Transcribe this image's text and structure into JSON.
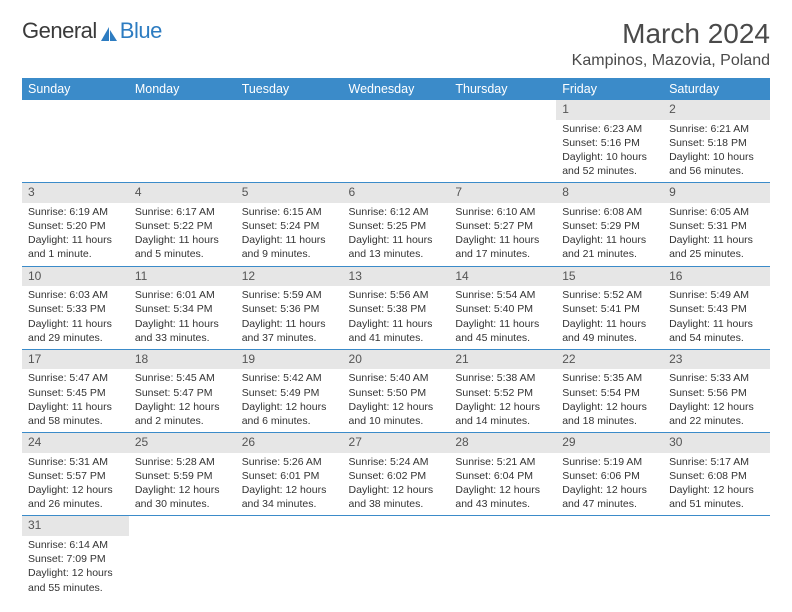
{
  "brand": {
    "word1": "General",
    "word2": "Blue"
  },
  "title": "March 2024",
  "location": "Kampinos, Mazovia, Poland",
  "colors": {
    "header_bg": "#3b8bc9",
    "header_text": "#ffffff",
    "daynum_bg": "#e6e6e6",
    "body_text": "#333333",
    "rule": "#3b8bc9"
  },
  "day_names": [
    "Sunday",
    "Monday",
    "Tuesday",
    "Wednesday",
    "Thursday",
    "Friday",
    "Saturday"
  ],
  "weeks": [
    [
      null,
      null,
      null,
      null,
      null,
      {
        "n": "1",
        "sr": "6:23 AM",
        "ss": "5:16 PM",
        "dl": "10 hours and 52 minutes."
      },
      {
        "n": "2",
        "sr": "6:21 AM",
        "ss": "5:18 PM",
        "dl": "10 hours and 56 minutes."
      }
    ],
    [
      {
        "n": "3",
        "sr": "6:19 AM",
        "ss": "5:20 PM",
        "dl": "11 hours and 1 minute."
      },
      {
        "n": "4",
        "sr": "6:17 AM",
        "ss": "5:22 PM",
        "dl": "11 hours and 5 minutes."
      },
      {
        "n": "5",
        "sr": "6:15 AM",
        "ss": "5:24 PM",
        "dl": "11 hours and 9 minutes."
      },
      {
        "n": "6",
        "sr": "6:12 AM",
        "ss": "5:25 PM",
        "dl": "11 hours and 13 minutes."
      },
      {
        "n": "7",
        "sr": "6:10 AM",
        "ss": "5:27 PM",
        "dl": "11 hours and 17 minutes."
      },
      {
        "n": "8",
        "sr": "6:08 AM",
        "ss": "5:29 PM",
        "dl": "11 hours and 21 minutes."
      },
      {
        "n": "9",
        "sr": "6:05 AM",
        "ss": "5:31 PM",
        "dl": "11 hours and 25 minutes."
      }
    ],
    [
      {
        "n": "10",
        "sr": "6:03 AM",
        "ss": "5:33 PM",
        "dl": "11 hours and 29 minutes."
      },
      {
        "n": "11",
        "sr": "6:01 AM",
        "ss": "5:34 PM",
        "dl": "11 hours and 33 minutes."
      },
      {
        "n": "12",
        "sr": "5:59 AM",
        "ss": "5:36 PM",
        "dl": "11 hours and 37 minutes."
      },
      {
        "n": "13",
        "sr": "5:56 AM",
        "ss": "5:38 PM",
        "dl": "11 hours and 41 minutes."
      },
      {
        "n": "14",
        "sr": "5:54 AM",
        "ss": "5:40 PM",
        "dl": "11 hours and 45 minutes."
      },
      {
        "n": "15",
        "sr": "5:52 AM",
        "ss": "5:41 PM",
        "dl": "11 hours and 49 minutes."
      },
      {
        "n": "16",
        "sr": "5:49 AM",
        "ss": "5:43 PM",
        "dl": "11 hours and 54 minutes."
      }
    ],
    [
      {
        "n": "17",
        "sr": "5:47 AM",
        "ss": "5:45 PM",
        "dl": "11 hours and 58 minutes."
      },
      {
        "n": "18",
        "sr": "5:45 AM",
        "ss": "5:47 PM",
        "dl": "12 hours and 2 minutes."
      },
      {
        "n": "19",
        "sr": "5:42 AM",
        "ss": "5:49 PM",
        "dl": "12 hours and 6 minutes."
      },
      {
        "n": "20",
        "sr": "5:40 AM",
        "ss": "5:50 PM",
        "dl": "12 hours and 10 minutes."
      },
      {
        "n": "21",
        "sr": "5:38 AM",
        "ss": "5:52 PM",
        "dl": "12 hours and 14 minutes."
      },
      {
        "n": "22",
        "sr": "5:35 AM",
        "ss": "5:54 PM",
        "dl": "12 hours and 18 minutes."
      },
      {
        "n": "23",
        "sr": "5:33 AM",
        "ss": "5:56 PM",
        "dl": "12 hours and 22 minutes."
      }
    ],
    [
      {
        "n": "24",
        "sr": "5:31 AM",
        "ss": "5:57 PM",
        "dl": "12 hours and 26 minutes."
      },
      {
        "n": "25",
        "sr": "5:28 AM",
        "ss": "5:59 PM",
        "dl": "12 hours and 30 minutes."
      },
      {
        "n": "26",
        "sr": "5:26 AM",
        "ss": "6:01 PM",
        "dl": "12 hours and 34 minutes."
      },
      {
        "n": "27",
        "sr": "5:24 AM",
        "ss": "6:02 PM",
        "dl": "12 hours and 38 minutes."
      },
      {
        "n": "28",
        "sr": "5:21 AM",
        "ss": "6:04 PM",
        "dl": "12 hours and 43 minutes."
      },
      {
        "n": "29",
        "sr": "5:19 AM",
        "ss": "6:06 PM",
        "dl": "12 hours and 47 minutes."
      },
      {
        "n": "30",
        "sr": "5:17 AM",
        "ss": "6:08 PM",
        "dl": "12 hours and 51 minutes."
      }
    ],
    [
      {
        "n": "31",
        "sr": "6:14 AM",
        "ss": "7:09 PM",
        "dl": "12 hours and 55 minutes."
      },
      null,
      null,
      null,
      null,
      null,
      null
    ]
  ],
  "labels": {
    "sunrise": "Sunrise: ",
    "sunset": "Sunset: ",
    "daylight": "Daylight: "
  }
}
